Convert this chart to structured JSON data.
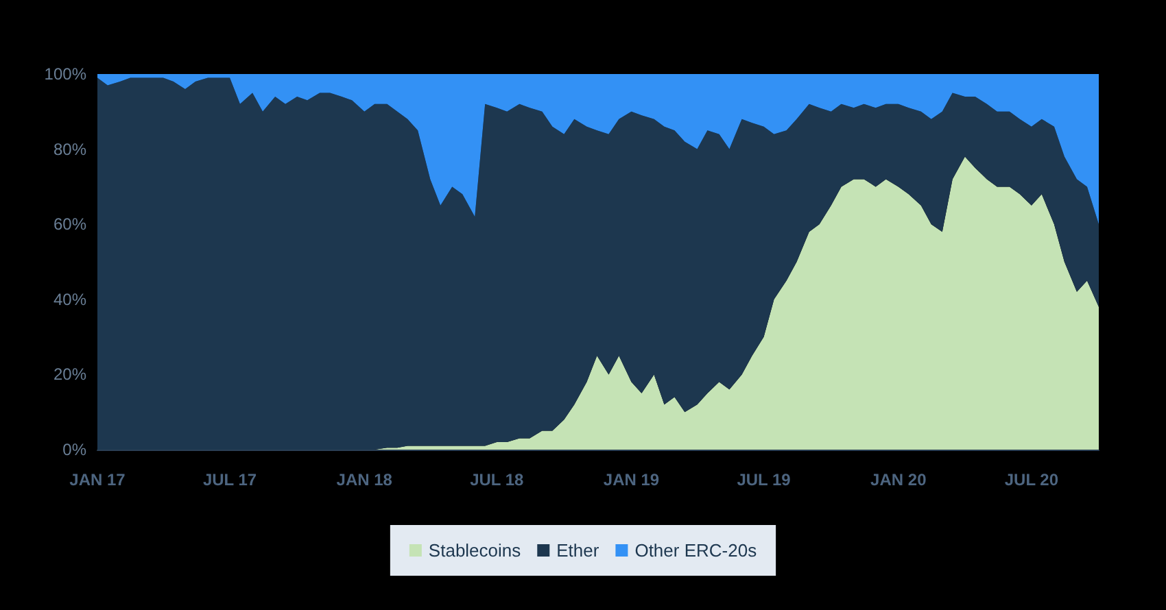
{
  "chart_data": {
    "type": "area",
    "stacked": true,
    "legend": "bottom",
    "grid": false,
    "marker": "none",
    "x": [
      "2017-01-01",
      "2017-01-15",
      "2017-02-01",
      "2017-02-15",
      "2017-03-01",
      "2017-03-15",
      "2017-04-01",
      "2017-04-15",
      "2017-05-01",
      "2017-05-15",
      "2017-06-01",
      "2017-06-15",
      "2017-07-01",
      "2017-07-15",
      "2017-08-01",
      "2017-08-15",
      "2017-09-01",
      "2017-09-15",
      "2017-10-01",
      "2017-10-15",
      "2017-11-01",
      "2017-11-15",
      "2017-12-01",
      "2017-12-15",
      "2018-01-01",
      "2018-01-15",
      "2018-02-01",
      "2018-02-15",
      "2018-03-01",
      "2018-03-15",
      "2018-04-01",
      "2018-04-15",
      "2018-05-01",
      "2018-05-15",
      "2018-06-01",
      "2018-06-15",
      "2018-07-01",
      "2018-07-15",
      "2018-08-01",
      "2018-08-15",
      "2018-09-01",
      "2018-09-15",
      "2018-10-01",
      "2018-10-15",
      "2018-11-01",
      "2018-11-15",
      "2018-12-01",
      "2018-12-15",
      "2019-01-01",
      "2019-01-15",
      "2019-02-01",
      "2019-02-15",
      "2019-03-01",
      "2019-03-15",
      "2019-04-01",
      "2019-04-15",
      "2019-05-01",
      "2019-05-15",
      "2019-06-01",
      "2019-06-15",
      "2019-07-01",
      "2019-07-15",
      "2019-08-01",
      "2019-08-15",
      "2019-09-01",
      "2019-09-15",
      "2019-10-01",
      "2019-10-15",
      "2019-11-01",
      "2019-11-15",
      "2019-12-01",
      "2019-12-15",
      "2020-01-01",
      "2020-01-15",
      "2020-02-01",
      "2020-02-15",
      "2020-03-01",
      "2020-03-15",
      "2020-04-01",
      "2020-04-15",
      "2020-05-01",
      "2020-05-15",
      "2020-06-01",
      "2020-06-15",
      "2020-07-01",
      "2020-07-15",
      "2020-08-01",
      "2020-08-15",
      "2020-09-01",
      "2020-09-15",
      "2020-10-01"
    ],
    "series": [
      {
        "name": "Stablecoins",
        "color": "#c5e3b5",
        "values": [
          0,
          0,
          0,
          0,
          0,
          0,
          0,
          0,
          0,
          0,
          0,
          0,
          0,
          0,
          0,
          0,
          0,
          0,
          0,
          0,
          0,
          0,
          0,
          0,
          0,
          0,
          0.5,
          0.5,
          1,
          1,
          1,
          1,
          1,
          1,
          1,
          1,
          2,
          2,
          3,
          3,
          5,
          5,
          8,
          12,
          18,
          25,
          20,
          25,
          18,
          15,
          20,
          12,
          14,
          10,
          12,
          15,
          18,
          16,
          20,
          25,
          30,
          40,
          45,
          50,
          58,
          60,
          65,
          70,
          72,
          72,
          70,
          72,
          70,
          68,
          65,
          60,
          58,
          72,
          78,
          75,
          72,
          70,
          70,
          68,
          65,
          68,
          60,
          50,
          42,
          45,
          38
        ]
      },
      {
        "name": "Ether",
        "color": "#1d374f",
        "values": [
          99,
          97,
          98,
          99,
          99,
          99,
          99,
          98,
          96,
          98,
          99,
          99,
          99,
          92,
          95,
          90,
          94,
          92,
          94,
          93,
          95,
          95,
          94,
          93,
          90,
          92,
          91.5,
          89.5,
          87,
          84,
          71,
          64,
          69,
          67,
          61,
          91,
          89,
          88,
          89,
          88,
          85,
          81,
          76,
          76,
          68,
          60,
          64,
          63,
          72,
          74,
          68,
          74,
          71,
          72,
          68,
          70,
          66,
          64,
          68,
          62,
          56,
          44,
          40,
          38,
          34,
          31,
          25,
          22,
          19,
          20,
          21,
          20,
          22,
          23,
          25,
          28,
          32,
          23,
          16,
          19,
          20,
          20,
          20,
          20,
          21,
          20,
          26,
          28,
          30,
          25,
          22
        ]
      },
      {
        "name": "Other ERC-20s",
        "color": "#3391f5",
        "values": [
          1,
          3,
          2,
          1,
          1,
          1,
          1,
          2,
          4,
          2,
          1,
          1,
          1,
          8,
          5,
          10,
          6,
          8,
          6,
          7,
          5,
          5,
          6,
          7,
          10,
          8,
          8,
          10,
          12,
          15,
          28,
          35,
          30,
          32,
          38,
          8,
          9,
          10,
          8,
          9,
          10,
          14,
          16,
          12,
          14,
          15,
          16,
          12,
          10,
          11,
          12,
          14,
          15,
          18,
          20,
          15,
          16,
          20,
          12,
          13,
          14,
          16,
          15,
          12,
          8,
          9,
          10,
          8,
          9,
          8,
          9,
          8,
          8,
          9,
          10,
          12,
          10,
          5,
          6,
          6,
          8,
          10,
          10,
          12,
          14,
          12,
          14,
          22,
          28,
          30,
          40
        ]
      }
    ],
    "ylim": [
      0,
      100
    ],
    "yticks": [
      {
        "value": 0,
        "label": "0%"
      },
      {
        "value": 20,
        "label": "20%"
      },
      {
        "value": 40,
        "label": "40%"
      },
      {
        "value": 60,
        "label": "60%"
      },
      {
        "value": 80,
        "label": "80%"
      },
      {
        "value": 100,
        "label": "100%"
      }
    ],
    "xlim": [
      "2017-01-01",
      "2020-10-01"
    ],
    "xticks": [
      {
        "value": "2017-01-01",
        "label": "JAN 17"
      },
      {
        "value": "2017-07-01",
        "label": "JUL 17"
      },
      {
        "value": "2018-01-01",
        "label": "JAN 18"
      },
      {
        "value": "2018-07-01",
        "label": "JUL 18"
      },
      {
        "value": "2019-01-01",
        "label": "JAN 19"
      },
      {
        "value": "2019-07-01",
        "label": "JUL 19"
      },
      {
        "value": "2020-01-01",
        "label": "JAN 20"
      },
      {
        "value": "2020-07-01",
        "label": "JUL 20"
      }
    ]
  }
}
